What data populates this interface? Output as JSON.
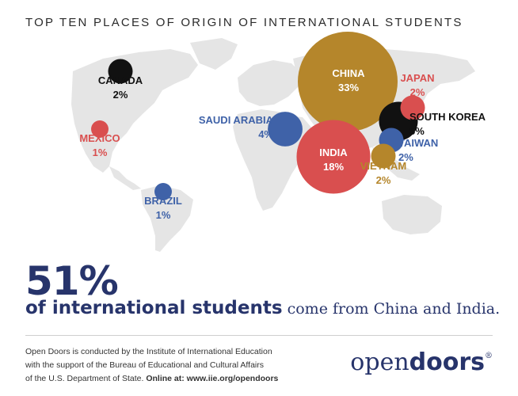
{
  "title": "TOP TEN PLACES OF ORIGIN OF INTERNATIONAL STUDENTS",
  "colors": {
    "land": "#e5e5e5",
    "navy": "#27346b",
    "gold": "#b5862b",
    "red": "#d94f4f",
    "blue": "#3f62a8",
    "black": "#111111"
  },
  "places": [
    {
      "id": "canada",
      "name": "CANADA",
      "value": "2%",
      "share": 2,
      "color": "#111111"
    },
    {
      "id": "mexico",
      "name": "MEXICO",
      "value": "1%",
      "share": 1,
      "color": "#d94f4f"
    },
    {
      "id": "brazil",
      "name": "BRAZIL",
      "value": "1%",
      "share": 1,
      "color": "#3f62a8"
    },
    {
      "id": "saudi-arabia",
      "name": "SAUDI ARABIA",
      "value": "4%",
      "share": 4,
      "color": "#3f62a8"
    },
    {
      "id": "china",
      "name": "CHINA",
      "value": "33%",
      "share": 33,
      "color": "#b5862b"
    },
    {
      "id": "india",
      "name": "INDIA",
      "value": "18%",
      "share": 18,
      "color": "#d94f4f"
    },
    {
      "id": "japan",
      "name": "JAPAN",
      "value": "2%",
      "share": 2,
      "color": "#d94f4f"
    },
    {
      "id": "south-korea",
      "name": "SOUTH KOREA",
      "value": "5%",
      "share": 5,
      "color": "#111111"
    },
    {
      "id": "taiwan",
      "name": "TAIWAN",
      "value": "2%",
      "share": 2,
      "color": "#3f62a8"
    },
    {
      "id": "vietnam",
      "name": "VIETNAM",
      "value": "2%",
      "share": 2,
      "color": "#b5862b"
    }
  ],
  "headline": {
    "percent": "51%",
    "bold_text": "of international students",
    "rest_text": " come from China and India."
  },
  "footer": {
    "line1": "Open Doors is conducted by the Institute of International Education",
    "line2": "with the support of the Bureau of Educational and Cultural Affairs",
    "line3_plain": "of the U.S. Department of State. ",
    "line3_bold": "Online at: www.iie.org/opendoors"
  },
  "logo": {
    "part1": "open",
    "part2": "doors",
    "mark": "®"
  }
}
